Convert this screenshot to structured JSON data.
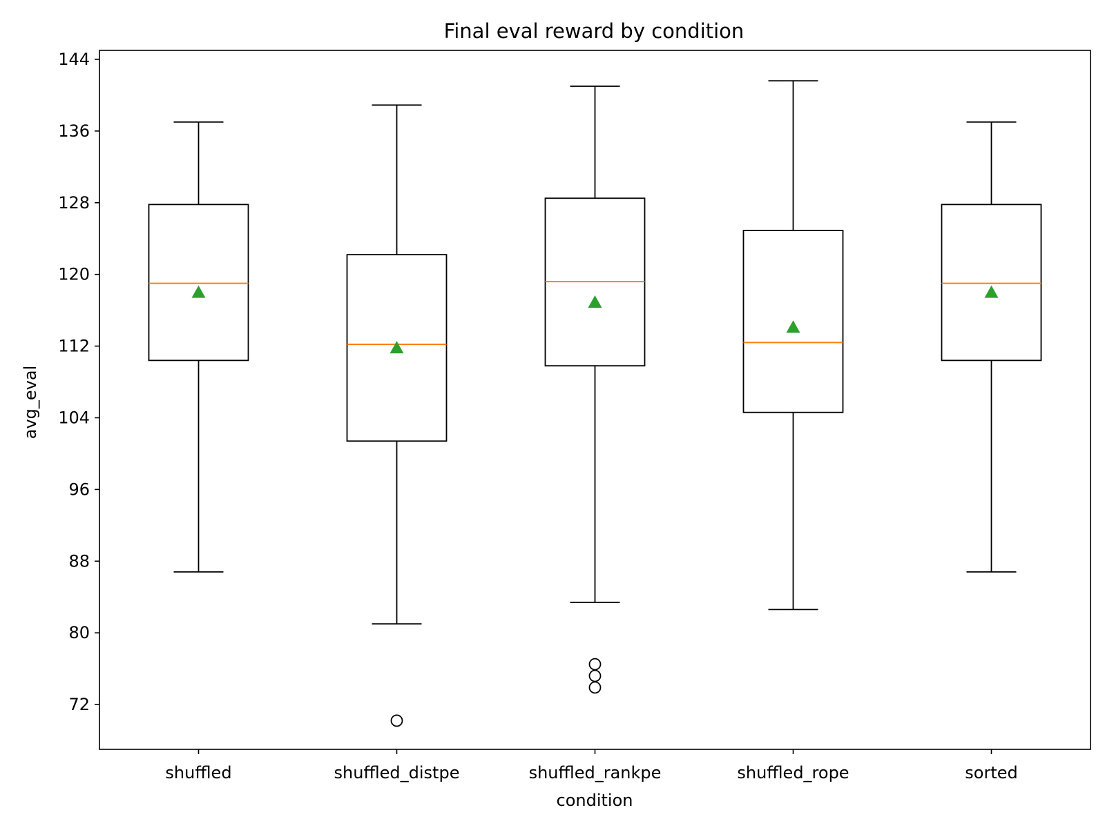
{
  "chart_data": {
    "type": "box",
    "title": "Final eval reward by condition",
    "xlabel": "condition",
    "ylabel": "avg_eval",
    "ylim": [
      67,
      145
    ],
    "yticks": [
      72,
      80,
      88,
      96,
      104,
      112,
      120,
      128,
      136,
      144
    ],
    "grid": false,
    "colors": {
      "median": "#ff7f0e",
      "mean": "#2ca02c",
      "box": "#000000"
    },
    "categories": [
      "shuffled",
      "shuffled_distpe",
      "shuffled_rankpe",
      "shuffled_rope",
      "sorted"
    ],
    "boxes": [
      {
        "name": "shuffled",
        "whisker_low": 86.8,
        "q1": 110.4,
        "median": 119.0,
        "q3": 127.8,
        "whisker_high": 137.0,
        "mean": 118.0,
        "outliers": []
      },
      {
        "name": "shuffled_distpe",
        "whisker_low": 81.0,
        "q1": 101.4,
        "median": 112.2,
        "q3": 122.2,
        "whisker_high": 138.9,
        "mean": 111.8,
        "outliers": [
          70.2
        ]
      },
      {
        "name": "shuffled_rankpe",
        "whisker_low": 83.4,
        "q1": 109.8,
        "median": 119.2,
        "q3": 128.5,
        "whisker_high": 141.0,
        "mean": 116.9,
        "outliers": [
          76.5,
          75.2,
          73.9
        ]
      },
      {
        "name": "shuffled_rope",
        "whisker_low": 82.6,
        "q1": 104.6,
        "median": 112.4,
        "q3": 124.9,
        "whisker_high": 141.6,
        "mean": 114.1,
        "outliers": []
      },
      {
        "name": "sorted",
        "whisker_low": 86.8,
        "q1": 110.4,
        "median": 119.0,
        "q3": 127.8,
        "whisker_high": 137.0,
        "mean": 118.0,
        "outliers": []
      }
    ]
  }
}
